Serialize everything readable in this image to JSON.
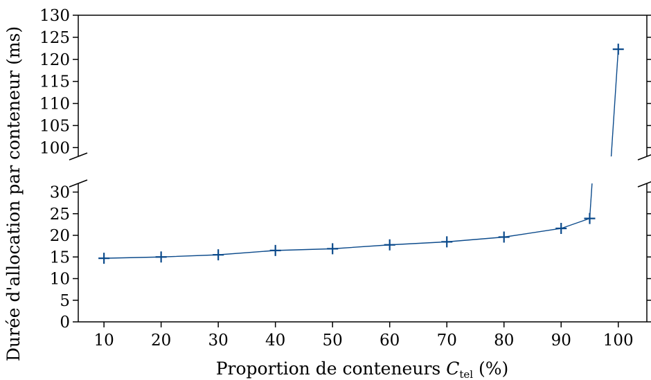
{
  "chart_data": {
    "type": "line",
    "xlabel": "Proportion de conteneurs",
    "xlabel_symbol": "C",
    "xlabel_subscript": "tel",
    "xlabel_unit": "(%)",
    "ylabel": "Durée d'allocation par conteneur (ms)",
    "x": [
      10,
      20,
      30,
      40,
      50,
      60,
      70,
      80,
      90,
      95,
      100
    ],
    "series": [
      {
        "values": [
          14.7,
          15.0,
          15.5,
          16.5,
          16.9,
          17.8,
          18.5,
          19.6,
          21.6,
          23.9,
          122.3
        ],
        "color": "#0b4a8b",
        "marker": "plus"
      }
    ],
    "x_ticks": [
      10,
      20,
      30,
      40,
      50,
      60,
      70,
      80,
      90,
      100
    ],
    "xlim": [
      5.5,
      105
    ],
    "broken_y_axis": true,
    "y_upper": {
      "ylim": [
        98,
        130
      ],
      "ticks": [
        100,
        105,
        110,
        115,
        120,
        125,
        130
      ]
    },
    "y_lower": {
      "ylim": [
        0,
        32
      ],
      "ticks": [
        0,
        5,
        10,
        15,
        20,
        25,
        30
      ]
    },
    "grid": false,
    "legend": false
  }
}
